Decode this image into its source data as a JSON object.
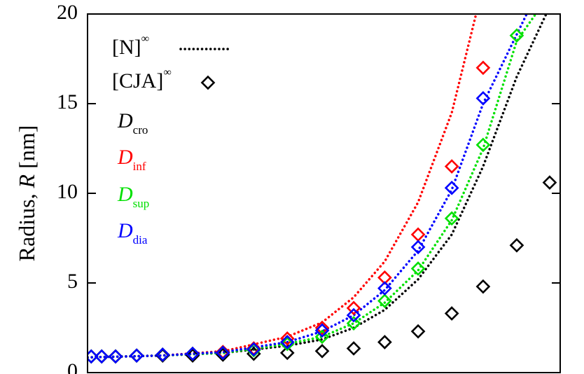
{
  "chart_data": {
    "type": "scatter",
    "ylabel": {
      "text": "Radius, ",
      "italic": "R",
      "unit": " [nm]"
    },
    "xscale": "log",
    "xlim": [
      0.225,
      100
    ],
    "ylim": [
      0,
      20
    ],
    "yticks": [
      0,
      5,
      10,
      15,
      20
    ],
    "styles": [
      {
        "name": "[N]",
        "superscript": "∞",
        "mark": "dotted-line"
      },
      {
        "name": "[CJA]",
        "superscript": "∞",
        "mark": "diamond"
      }
    ],
    "x": [
      0.236,
      0.27,
      0.323,
      0.424,
      0.593,
      0.873,
      1.29,
      1.92,
      2.96,
      4.64,
      6.97,
      10.4,
      16.0,
      24.7,
      37.0,
      57.1,
      87.3
    ],
    "series": [
      {
        "name": "D",
        "subscript": "cro",
        "color": "#000000",
        "curve": {
          "x": [
            0.225,
            0.582,
            1.31,
            2.96,
            4.64,
            6.97,
            10.4,
            16.0,
            24.7,
            37.0,
            57.1,
            83.5
          ],
          "values": [
            0.85,
            0.95,
            1.1,
            1.5,
            1.85,
            2.5,
            3.5,
            5.2,
            7.7,
            11.5,
            16.5,
            20
          ]
        },
        "values": [
          0.9,
          0.9,
          0.9,
          0.95,
          0.95,
          0.95,
          1.0,
          1.05,
          1.1,
          1.2,
          1.35,
          1.7,
          2.3,
          3.3,
          4.8,
          7.1,
          10.6
        ]
      },
      {
        "name": "D",
        "subscript": "inf",
        "color": "#ff0000",
        "curve": {
          "x": [
            0.225,
            0.582,
            1.31,
            2.96,
            4.64,
            6.97,
            10.4,
            16.0,
            24.7,
            33.8
          ],
          "values": [
            0.85,
            0.95,
            1.2,
            2.0,
            2.8,
            4.2,
            6.2,
            9.5,
            14.5,
            20
          ]
        },
        "values": [
          0.9,
          0.9,
          0.9,
          0.95,
          1.0,
          1.05,
          1.15,
          1.35,
          1.9,
          2.5,
          3.6,
          5.3,
          7.7,
          11.5,
          17.0,
          null,
          null
        ]
      },
      {
        "name": "D",
        "subscript": "sup",
        "color": "#00e000",
        "curve": {
          "x": [
            0.225,
            0.582,
            1.31,
            2.96,
            4.64,
            6.97,
            10.4,
            16.0,
            24.7,
            37.0,
            57.1,
            72.9
          ],
          "values": [
            0.85,
            0.95,
            1.1,
            1.6,
            2.0,
            2.75,
            3.9,
            5.7,
            8.5,
            12.5,
            18.5,
            20
          ]
        },
        "values": [
          0.9,
          0.9,
          0.9,
          0.95,
          1.0,
          1.05,
          1.1,
          1.25,
          1.6,
          2.0,
          2.75,
          4.0,
          5.8,
          8.6,
          12.7,
          18.8,
          null
        ]
      },
      {
        "name": "D",
        "subscript": "dia",
        "color": "#0000ff",
        "curve": {
          "x": [
            0.225,
            0.582,
            1.31,
            2.96,
            4.64,
            6.97,
            10.4,
            16.0,
            24.7,
            37.0,
            64.9
          ],
          "values": [
            0.85,
            0.95,
            1.15,
            1.7,
            2.3,
            3.2,
            4.6,
            6.8,
            10.2,
            15.0,
            20
          ]
        },
        "values": [
          0.9,
          0.9,
          0.9,
          0.95,
          1.0,
          1.05,
          1.1,
          1.3,
          1.7,
          2.35,
          3.2,
          4.7,
          7.0,
          10.3,
          15.3,
          null,
          null
        ]
      }
    ]
  }
}
